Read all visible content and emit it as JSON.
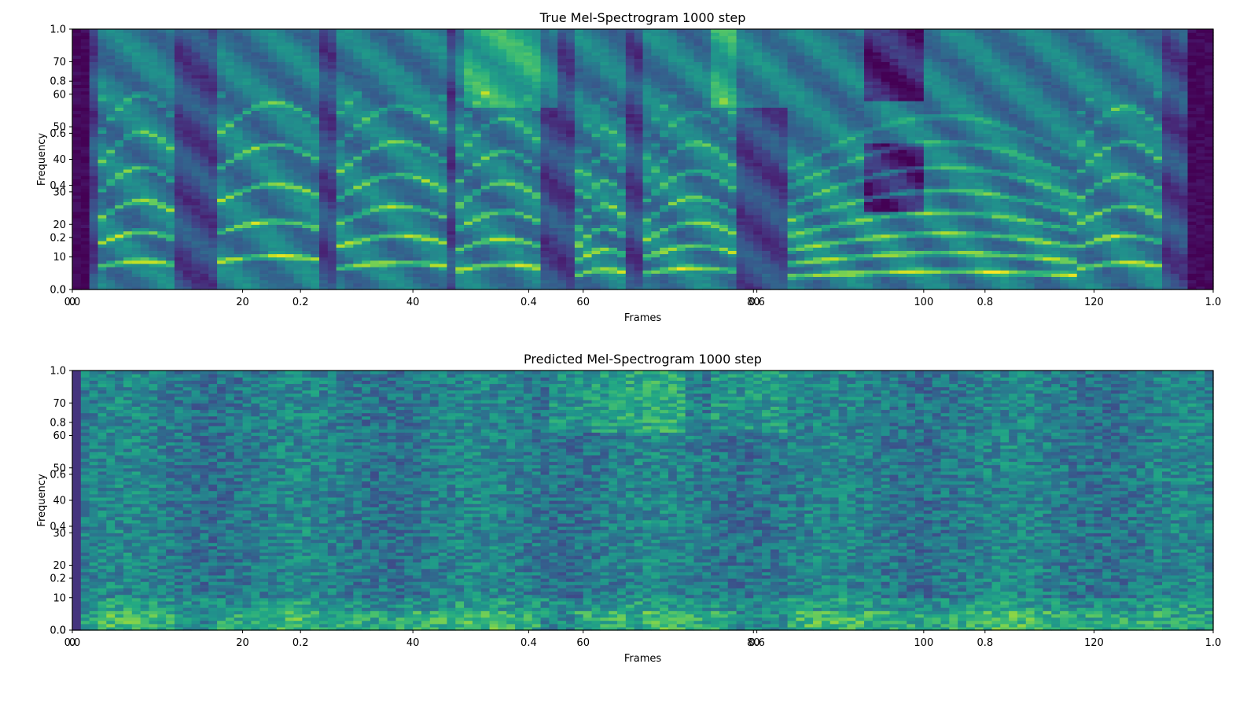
{
  "chart_data": [
    {
      "type": "heatmap",
      "title": "True Mel-Spectrogram     1000 step",
      "xlabel": "Frames",
      "ylabel": "Frequency",
      "xlim": [
        0,
        134
      ],
      "ylim": [
        0,
        80
      ],
      "x_ticks": [
        "0",
        "20",
        "40",
        "60",
        "80",
        "100",
        "120"
      ],
      "y_ticks": [
        "0",
        "10",
        "20",
        "30",
        "40",
        "50",
        "60",
        "70"
      ],
      "overlay_x_ticks": [
        "0.0",
        "0.2",
        "0.4",
        "0.6",
        "0.8",
        "1.0"
      ],
      "overlay_y_ticks": [
        "0.0",
        "0.2",
        "0.4",
        "0.6",
        "0.8",
        "1.0"
      ],
      "colormap": "viridis",
      "n_frames": 134,
      "n_mels": 80,
      "grid": false,
      "content": "clean"
    },
    {
      "type": "heatmap",
      "title": "Predicted Mel-Spectrogram     1000 step",
      "xlabel": "Frames",
      "ylabel": "Frequency",
      "xlim": [
        0,
        134
      ],
      "ylim": [
        0,
        80
      ],
      "x_ticks": [
        "0",
        "20",
        "40",
        "60",
        "80",
        "100",
        "120"
      ],
      "y_ticks": [
        "0",
        "10",
        "20",
        "30",
        "40",
        "50",
        "60",
        "70"
      ],
      "overlay_x_ticks": [
        "0.0",
        "0.2",
        "0.4",
        "0.6",
        "0.8",
        "1.0"
      ],
      "overlay_y_ticks": [
        "0.0",
        "0.2",
        "0.4",
        "0.6",
        "0.8",
        "1.0"
      ],
      "colormap": "viridis",
      "n_frames": 134,
      "n_mels": 80,
      "grid": false,
      "content": "noisy"
    }
  ]
}
